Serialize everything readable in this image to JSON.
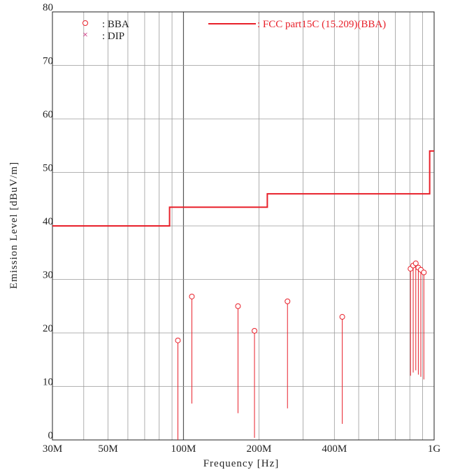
{
  "chart_data": {
    "type": "scatter",
    "title": "",
    "xlabel": "Frequency [Hz]",
    "ylabel": "Emission Level [dBuV/m]",
    "x_scale": "log",
    "xlim_hz": [
      30000000,
      1000000000
    ],
    "ylim": [
      0,
      80
    ],
    "grid": true,
    "x_ticks": [
      {
        "value": 30000000,
        "label": "30M"
      },
      {
        "value": 50000000,
        "label": "50M"
      },
      {
        "value": 100000000,
        "label": "100M"
      },
      {
        "value": 200000000,
        "label": "200M"
      },
      {
        "value": 400000000,
        "label": "400M"
      },
      {
        "value": 1000000000,
        "label": "1G"
      }
    ],
    "y_ticks": [
      {
        "value": 0,
        "label": "0"
      },
      {
        "value": 10,
        "label": "10"
      },
      {
        "value": 20,
        "label": "20"
      },
      {
        "value": 30,
        "label": "30"
      },
      {
        "value": 40,
        "label": "40"
      },
      {
        "value": 50,
        "label": "50"
      },
      {
        "value": 60,
        "label": "60"
      },
      {
        "value": 70,
        "label": "70"
      },
      {
        "value": 80,
        "label": "80"
      }
    ],
    "legend": [
      {
        "symbol": "o",
        "label": ": BBA",
        "color": "#e8202a"
      },
      {
        "symbol": "×",
        "label": ": DIP",
        "color": "#cc2277"
      }
    ],
    "limit_line": {
      "name": ": FCC part15C (15.209)(BBA)",
      "color": "#e8202a",
      "steps": [
        {
          "x_start": 30000000,
          "x_end": 88000000,
          "y": 40.0
        },
        {
          "x_start": 88000000,
          "x_end": 216000000,
          "y": 43.5
        },
        {
          "x_start": 216000000,
          "x_end": 960000000,
          "y": 46.0
        },
        {
          "x_start": 960000000,
          "x_end": 1000000000,
          "y": 54.0
        }
      ]
    },
    "series": [
      {
        "name": "BBA",
        "color": "#e8202a",
        "points": [
          {
            "x": 95000000,
            "y": 18.6,
            "y_low": 0.0
          },
          {
            "x": 108000000,
            "y": 26.8,
            "y_low": 6.8
          },
          {
            "x": 165000000,
            "y": 25.0,
            "y_low": 5.0
          },
          {
            "x": 192000000,
            "y": 20.4,
            "y_low": 0.4
          },
          {
            "x": 260000000,
            "y": 25.9,
            "y_low": 5.9
          },
          {
            "x": 430000000,
            "y": 23.0,
            "y_low": 3.0
          },
          {
            "x": 805000000,
            "y": 32.0,
            "y_low": 12.0
          },
          {
            "x": 825000000,
            "y": 32.6,
            "y_low": 12.6
          },
          {
            "x": 845000000,
            "y": 33.0,
            "y_low": 13.0
          },
          {
            "x": 865000000,
            "y": 32.2,
            "y_low": 12.2
          },
          {
            "x": 885000000,
            "y": 31.8,
            "y_low": 11.8
          },
          {
            "x": 910000000,
            "y": 31.3,
            "y_low": 11.3
          }
        ]
      }
    ]
  }
}
